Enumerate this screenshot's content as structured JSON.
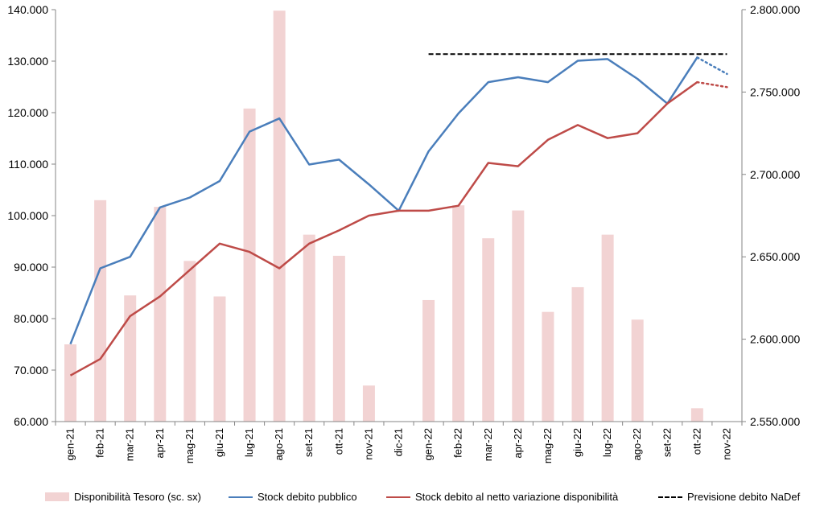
{
  "chart_data": {
    "type": "bar+line",
    "categories": [
      "gen-21",
      "feb-21",
      "mar-21",
      "apr-21",
      "mag-21",
      "giu-21",
      "lug-21",
      "ago-21",
      "set-21",
      "ott-21",
      "nov-21",
      "dic-21",
      "gen-22",
      "feb-22",
      "mar-22",
      "apr-22",
      "mag-22",
      "giu-22",
      "lug-22",
      "ago-22",
      "set-22",
      "ott-22",
      "nov-22"
    ],
    "left_axis": {
      "ylim": [
        60000,
        140000
      ],
      "ticks": [
        "60.000",
        "70.000",
        "80.000",
        "90.000",
        "100.000",
        "110.000",
        "120.000",
        "130.000",
        "140.000"
      ]
    },
    "right_axis": {
      "ylim": [
        2550000,
        2800000
      ],
      "ticks": [
        "2.550.000",
        "2.600.000",
        "2.650.000",
        "2.700.000",
        "2.750.000",
        "2.800.000"
      ]
    },
    "series": [
      {
        "name": "Disponibilità Tesoro (sc. sx)",
        "kind": "bar",
        "axis": "left",
        "color": "#f2d3d3",
        "values": [
          75000,
          103000,
          84500,
          101700,
          91200,
          84300,
          120800,
          139800,
          96300,
          92200,
          67000,
          null,
          83600,
          102000,
          95600,
          101000,
          81300,
          86100,
          96300,
          79800,
          null,
          62600,
          null
        ]
      },
      {
        "name": "Stock debito pubblico",
        "kind": "line",
        "axis": "right",
        "color": "#4a7ebb",
        "values": [
          2597000,
          2643000,
          2650000,
          2680000,
          2686000,
          2696000,
          2726000,
          2734000,
          2706000,
          2709000,
          2694000,
          2678000,
          2714000,
          2737000,
          2756000,
          2759000,
          2756000,
          2769000,
          2770000,
          2758000,
          2743000,
          2771000,
          null
        ],
        "projection": [
          {
            "category": "ott-22",
            "value": 2771000
          },
          {
            "category": "nov-22",
            "value": 2761000
          }
        ]
      },
      {
        "name": "Stock debito al netto variazione disponibilità",
        "kind": "line",
        "axis": "right",
        "color": "#be4b48",
        "values": [
          2578000,
          2588000,
          2614000,
          2626000,
          2642000,
          2658000,
          2653000,
          2643000,
          2658000,
          2666000,
          2675000,
          2678000,
          2678000,
          2681000,
          2707000,
          2705000,
          2721000,
          2730000,
          2722000,
          2725000,
          2743000,
          2756000,
          null
        ],
        "projection": [
          {
            "category": "ott-22",
            "value": 2756000
          },
          {
            "category": "nov-22",
            "value": 2753000
          }
        ]
      },
      {
        "name": "Previsione debito NaDef",
        "kind": "dashed-line",
        "axis": "right",
        "color": "#000000",
        "value": 2773000,
        "from": "gen-22",
        "to": "nov-22"
      }
    ],
    "grid": false,
    "legend": "bottom"
  }
}
